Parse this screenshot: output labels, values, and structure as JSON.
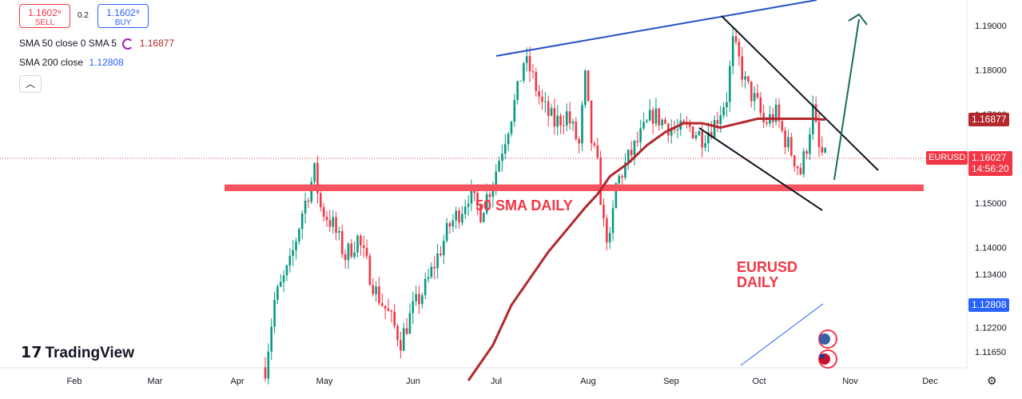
{
  "toolbar": {
    "sell_price": "1.1602⁶",
    "sell_label": "SELL",
    "spread": "0.2",
    "buy_price": "1.1602⁸",
    "buy_label": "BUY"
  },
  "legend": {
    "sma_line1": "SMA 50 close 0 SMA 5",
    "sma_line1_value": "1.16877",
    "sma_line2": "SMA 200 close",
    "sma_line2_value": "1.12808",
    "collapse_icon": "chevron-up-icon"
  },
  "symbol_tag": "EURUSD",
  "current_price": "1.16027",
  "countdown": "14:56:20",
  "sma50_tag": "1.16877",
  "sma200_tag": "1.12808",
  "branding": "TradingView",
  "annotations": {
    "sma_label": "50 SMA DAILY",
    "title_line1": "EURUSD",
    "title_line2": "DAILY"
  },
  "colors": {
    "up": "#089981",
    "down": "#f23645",
    "sma50": "#b2282e",
    "support_zone": "#f7525f",
    "trendline_blue": "#2350c9",
    "arrow": "#1a6b5a",
    "buy": "#2962ff"
  },
  "chart_data": {
    "type": "candlestick",
    "symbol": "EURUSD",
    "timeframe": "Daily",
    "y_axis_ticks": [
      "1.19000",
      "1.18000",
      "1.17000",
      "1.15000",
      "1.14000",
      "1.13400",
      "1.12200",
      "1.11650"
    ],
    "x_axis_ticks": [
      "Feb",
      "Mar",
      "Apr",
      "May",
      "Jun",
      "Jul",
      "Aug",
      "Sep",
      "Oct",
      "Nov",
      "Dec"
    ],
    "ylim": [
      1.112,
      1.196
    ],
    "current_price": 1.16027,
    "sma50_last": 1.16877,
    "sma200_last": 1.12808,
    "support_zone": [
      1.1527,
      1.1542
    ],
    "close_path": [
      [
        0,
        1.113
      ],
      [
        3,
        1.128
      ],
      [
        8,
        1.136
      ],
      [
        12,
        1.148
      ],
      [
        16,
        1.157
      ],
      [
        18,
        1.149
      ],
      [
        22,
        1.145
      ],
      [
        26,
        1.138
      ],
      [
        30,
        1.142
      ],
      [
        36,
        1.13
      ],
      [
        40,
        1.125
      ],
      [
        44,
        1.119
      ],
      [
        48,
        1.126
      ],
      [
        52,
        1.131
      ],
      [
        56,
        1.138
      ],
      [
        60,
        1.145
      ],
      [
        64,
        1.149
      ],
      [
        66,
        1.152
      ],
      [
        70,
        1.148
      ],
      [
        74,
        1.155
      ],
      [
        78,
        1.165
      ],
      [
        82,
        1.175
      ],
      [
        84,
        1.182
      ],
      [
        86,
        1.18
      ],
      [
        90,
        1.172
      ],
      [
        94,
        1.168
      ],
      [
        98,
        1.17
      ],
      [
        102,
        1.163
      ],
      [
        104,
        1.178
      ],
      [
        106,
        1.164
      ],
      [
        108,
        1.158
      ],
      [
        110,
        1.145
      ],
      [
        112,
        1.141
      ],
      [
        114,
        1.154
      ],
      [
        118,
        1.16
      ],
      [
        122,
        1.165
      ],
      [
        126,
        1.17
      ],
      [
        130,
        1.168
      ],
      [
        134,
        1.166
      ],
      [
        138,
        1.167
      ],
      [
        142,
        1.165
      ],
      [
        146,
        1.168
      ],
      [
        150,
        1.174
      ],
      [
        152,
        1.186
      ],
      [
        154,
        1.182
      ],
      [
        156,
        1.177
      ],
      [
        160,
        1.172
      ],
      [
        162,
        1.168
      ],
      [
        166,
        1.17
      ],
      [
        168,
        1.166
      ],
      [
        172,
        1.16
      ],
      [
        174,
        1.157
      ],
      [
        176,
        1.163
      ],
      [
        178,
        1.171
      ],
      [
        180,
        1.162
      ],
      [
        182,
        1.16
      ]
    ],
    "sma50_path": [
      [
        66,
        1.11
      ],
      [
        74,
        1.118
      ],
      [
        80,
        1.127
      ],
      [
        86,
        1.133
      ],
      [
        92,
        1.139
      ],
      [
        98,
        1.144
      ],
      [
        104,
        1.149
      ],
      [
        108,
        1.152
      ],
      [
        112,
        1.156
      ],
      [
        118,
        1.159
      ],
      [
        124,
        1.163
      ],
      [
        130,
        1.166
      ],
      [
        136,
        1.168
      ],
      [
        142,
        1.168
      ],
      [
        148,
        1.167
      ],
      [
        154,
        1.168
      ],
      [
        160,
        1.169
      ],
      [
        166,
        1.169
      ],
      [
        172,
        1.169
      ],
      [
        178,
        1.169
      ],
      [
        182,
        1.1688
      ]
    ]
  }
}
